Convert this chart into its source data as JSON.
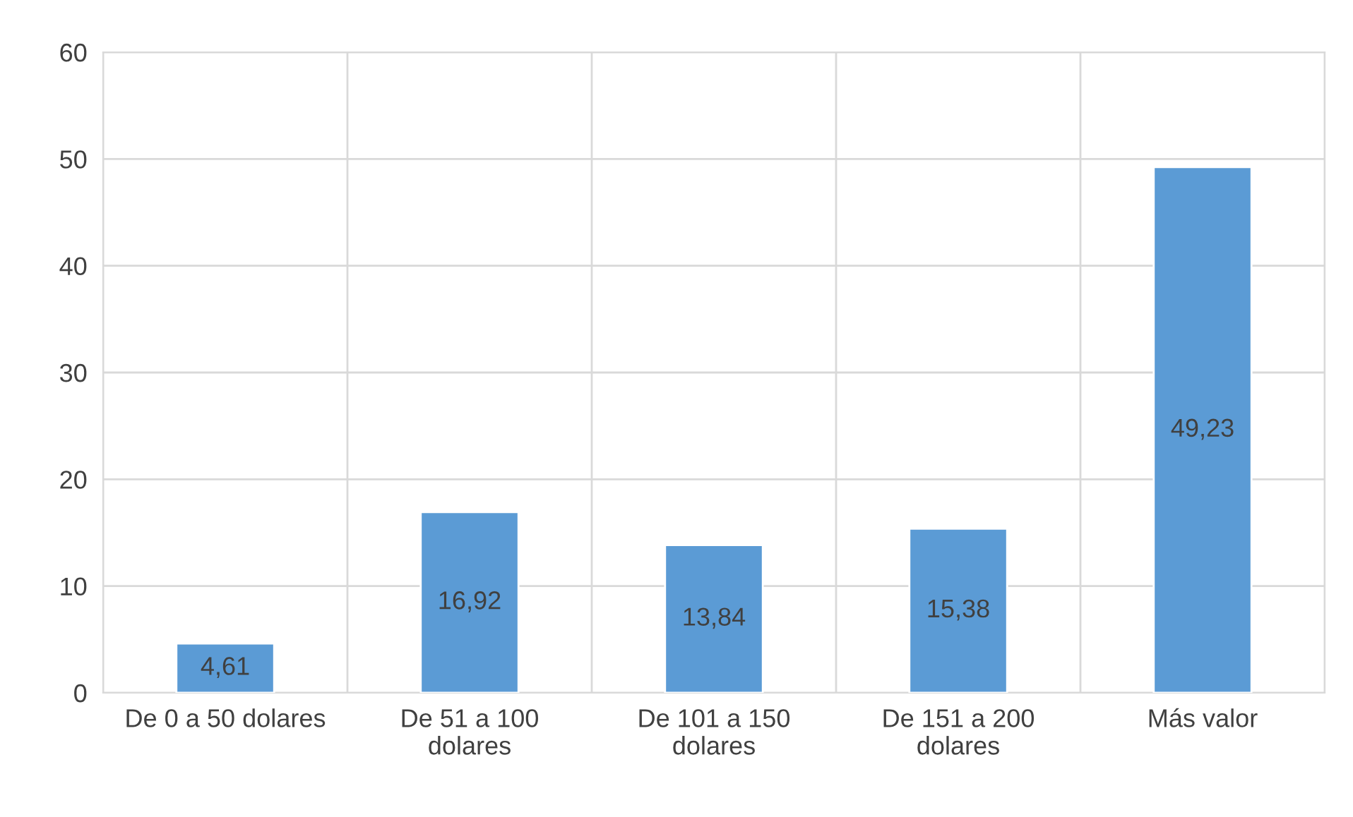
{
  "chart_data": {
    "type": "bar",
    "categories": [
      "De 0 a 50 dolares",
      "De 51 a 100\ndolares",
      "De 101 a 150\ndolares",
      "De 151 a 200\ndolares",
      "Más valor"
    ],
    "values": [
      4.61,
      16.92,
      13.84,
      15.38,
      49.23
    ],
    "value_labels": [
      "4,61",
      "16,92",
      "13,84",
      "15,38",
      "49,23"
    ],
    "color": "#5b9bd5",
    "ylim": [
      0,
      60
    ],
    "yticks": [
      0,
      10,
      20,
      30,
      40,
      50,
      60
    ],
    "grid": true,
    "legend": false
  }
}
